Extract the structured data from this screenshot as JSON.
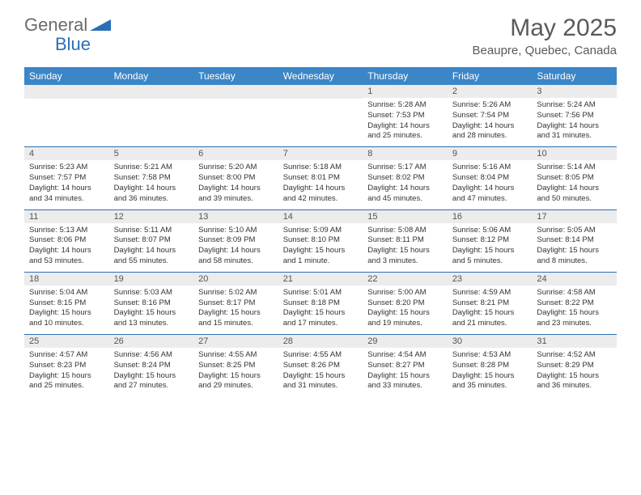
{
  "brand": {
    "part1": "General",
    "part2": "Blue"
  },
  "title": "May 2025",
  "location": "Beaupre, Quebec, Canada",
  "colors": {
    "header_bg": "#3b86c7",
    "header_text": "#ffffff",
    "border": "#2a6fb5",
    "daynum_bg": "#ececec",
    "text": "#333333",
    "logo_gray": "#6b6b6b",
    "logo_blue": "#2a6fb5"
  },
  "day_headers": [
    "Sunday",
    "Monday",
    "Tuesday",
    "Wednesday",
    "Thursday",
    "Friday",
    "Saturday"
  ],
  "weeks": [
    [
      null,
      null,
      null,
      null,
      {
        "n": "1",
        "sunrise": "5:28 AM",
        "sunset": "7:53 PM",
        "daylight": "14 hours and 25 minutes."
      },
      {
        "n": "2",
        "sunrise": "5:26 AM",
        "sunset": "7:54 PM",
        "daylight": "14 hours and 28 minutes."
      },
      {
        "n": "3",
        "sunrise": "5:24 AM",
        "sunset": "7:56 PM",
        "daylight": "14 hours and 31 minutes."
      }
    ],
    [
      {
        "n": "4",
        "sunrise": "5:23 AM",
        "sunset": "7:57 PM",
        "daylight": "14 hours and 34 minutes."
      },
      {
        "n": "5",
        "sunrise": "5:21 AM",
        "sunset": "7:58 PM",
        "daylight": "14 hours and 36 minutes."
      },
      {
        "n": "6",
        "sunrise": "5:20 AM",
        "sunset": "8:00 PM",
        "daylight": "14 hours and 39 minutes."
      },
      {
        "n": "7",
        "sunrise": "5:18 AM",
        "sunset": "8:01 PM",
        "daylight": "14 hours and 42 minutes."
      },
      {
        "n": "8",
        "sunrise": "5:17 AM",
        "sunset": "8:02 PM",
        "daylight": "14 hours and 45 minutes."
      },
      {
        "n": "9",
        "sunrise": "5:16 AM",
        "sunset": "8:04 PM",
        "daylight": "14 hours and 47 minutes."
      },
      {
        "n": "10",
        "sunrise": "5:14 AM",
        "sunset": "8:05 PM",
        "daylight": "14 hours and 50 minutes."
      }
    ],
    [
      {
        "n": "11",
        "sunrise": "5:13 AM",
        "sunset": "8:06 PM",
        "daylight": "14 hours and 53 minutes."
      },
      {
        "n": "12",
        "sunrise": "5:11 AM",
        "sunset": "8:07 PM",
        "daylight": "14 hours and 55 minutes."
      },
      {
        "n": "13",
        "sunrise": "5:10 AM",
        "sunset": "8:09 PM",
        "daylight": "14 hours and 58 minutes."
      },
      {
        "n": "14",
        "sunrise": "5:09 AM",
        "sunset": "8:10 PM",
        "daylight": "15 hours and 1 minute."
      },
      {
        "n": "15",
        "sunrise": "5:08 AM",
        "sunset": "8:11 PM",
        "daylight": "15 hours and 3 minutes."
      },
      {
        "n": "16",
        "sunrise": "5:06 AM",
        "sunset": "8:12 PM",
        "daylight": "15 hours and 5 minutes."
      },
      {
        "n": "17",
        "sunrise": "5:05 AM",
        "sunset": "8:14 PM",
        "daylight": "15 hours and 8 minutes."
      }
    ],
    [
      {
        "n": "18",
        "sunrise": "5:04 AM",
        "sunset": "8:15 PM",
        "daylight": "15 hours and 10 minutes."
      },
      {
        "n": "19",
        "sunrise": "5:03 AM",
        "sunset": "8:16 PM",
        "daylight": "15 hours and 13 minutes."
      },
      {
        "n": "20",
        "sunrise": "5:02 AM",
        "sunset": "8:17 PM",
        "daylight": "15 hours and 15 minutes."
      },
      {
        "n": "21",
        "sunrise": "5:01 AM",
        "sunset": "8:18 PM",
        "daylight": "15 hours and 17 minutes."
      },
      {
        "n": "22",
        "sunrise": "5:00 AM",
        "sunset": "8:20 PM",
        "daylight": "15 hours and 19 minutes."
      },
      {
        "n": "23",
        "sunrise": "4:59 AM",
        "sunset": "8:21 PM",
        "daylight": "15 hours and 21 minutes."
      },
      {
        "n": "24",
        "sunrise": "4:58 AM",
        "sunset": "8:22 PM",
        "daylight": "15 hours and 23 minutes."
      }
    ],
    [
      {
        "n": "25",
        "sunrise": "4:57 AM",
        "sunset": "8:23 PM",
        "daylight": "15 hours and 25 minutes."
      },
      {
        "n": "26",
        "sunrise": "4:56 AM",
        "sunset": "8:24 PM",
        "daylight": "15 hours and 27 minutes."
      },
      {
        "n": "27",
        "sunrise": "4:55 AM",
        "sunset": "8:25 PM",
        "daylight": "15 hours and 29 minutes."
      },
      {
        "n": "28",
        "sunrise": "4:55 AM",
        "sunset": "8:26 PM",
        "daylight": "15 hours and 31 minutes."
      },
      {
        "n": "29",
        "sunrise": "4:54 AM",
        "sunset": "8:27 PM",
        "daylight": "15 hours and 33 minutes."
      },
      {
        "n": "30",
        "sunrise": "4:53 AM",
        "sunset": "8:28 PM",
        "daylight": "15 hours and 35 minutes."
      },
      {
        "n": "31",
        "sunrise": "4:52 AM",
        "sunset": "8:29 PM",
        "daylight": "15 hours and 36 minutes."
      }
    ]
  ],
  "labels": {
    "sunrise": "Sunrise:",
    "sunset": "Sunset:",
    "daylight": "Daylight:"
  }
}
